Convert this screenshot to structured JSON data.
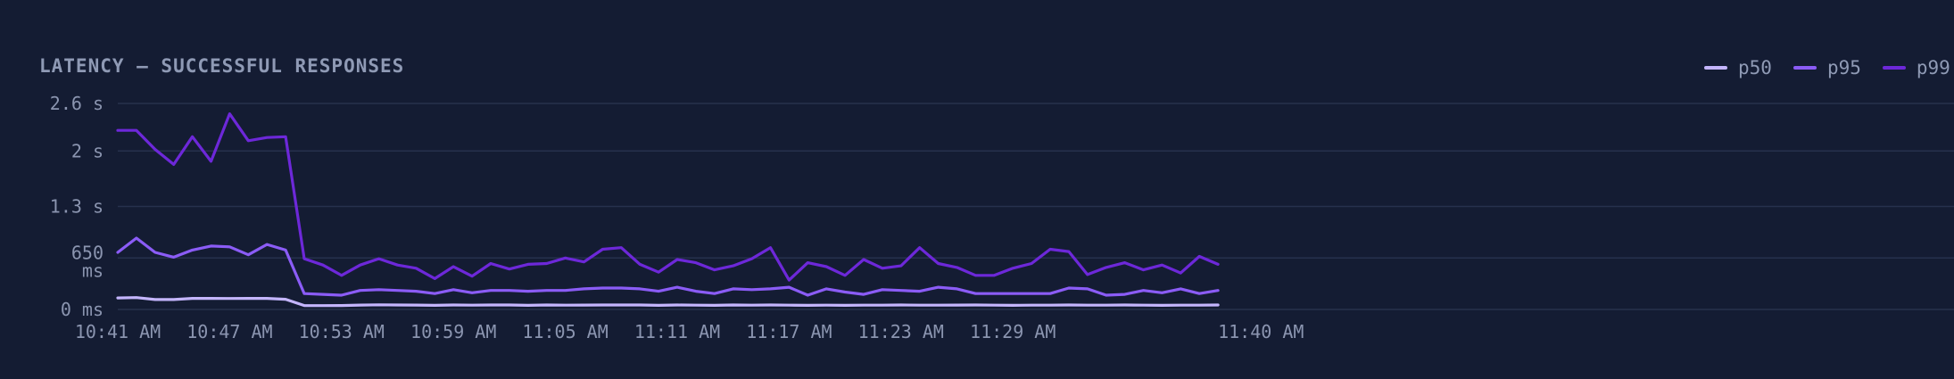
{
  "chart_data": {
    "type": "line",
    "title": "LATENCY — SUCCESSFUL RESPONSES",
    "xlabel": "",
    "ylabel": "",
    "x_tick_labels": [
      "10:41 AM",
      "10:47 AM",
      "10:53 AM",
      "10:59 AM",
      "11:05 AM",
      "11:11 AM",
      "11:17 AM",
      "11:23 AM",
      "11:29 AM",
      "11:40 AM"
    ],
    "x_tick_index": [
      0,
      6,
      12,
      18,
      24,
      30,
      36,
      42,
      48,
      59
    ],
    "y_ticks": [
      {
        "value": 0,
        "label": "0 ms"
      },
      {
        "value": 650,
        "label": "650 ms"
      },
      {
        "value": 1300,
        "label": "1.3 s"
      },
      {
        "value": 2000,
        "label": "2 s"
      },
      {
        "value": 2600,
        "label": "2.6 s"
      }
    ],
    "ylim": [
      0,
      2600
    ],
    "grid": true,
    "legend_position": "top-right",
    "colors": {
      "p50": "#c4b5fd",
      "p95": "#8b5cf6",
      "p99": "#6d28d9"
    },
    "series": [
      {
        "name": "p50",
        "color": "#c4b5fd",
        "values": [
          145,
          150,
          125,
          125,
          140,
          140,
          138,
          140,
          140,
          128,
          50,
          48,
          50,
          55,
          58,
          56,
          55,
          52,
          56,
          54,
          56,
          56,
          52,
          56,
          54,
          55,
          56,
          56,
          56,
          52,
          56,
          54,
          52,
          56,
          54,
          56,
          54,
          52,
          54,
          52,
          54,
          54,
          56,
          54,
          54,
          55,
          56,
          54,
          52,
          54,
          54,
          56,
          54,
          54,
          56,
          54,
          52,
          54,
          54,
          56
        ]
      },
      {
        "name": "p95",
        "color": "#8b5cf6",
        "values": [
          720,
          900,
          720,
          660,
          750,
          800,
          790,
          690,
          820,
          750,
          200,
          190,
          180,
          240,
          250,
          240,
          230,
          200,
          250,
          210,
          240,
          240,
          230,
          240,
          240,
          260,
          270,
          270,
          260,
          230,
          280,
          230,
          200,
          260,
          250,
          260,
          280,
          180,
          260,
          220,
          190,
          250,
          240,
          230,
          280,
          260,
          200,
          200,
          200,
          200,
          200,
          270,
          260,
          180,
          190,
          240,
          210,
          260,
          200,
          240
        ]
      },
      {
        "name": "p99",
        "color": "#6d28d9",
        "values": [
          2260,
          2260,
          2020,
          1830,
          2180,
          1870,
          2470,
          2130,
          2170,
          2180,
          640,
          560,
          430,
          560,
          640,
          560,
          520,
          390,
          540,
          420,
          580,
          510,
          570,
          580,
          650,
          600,
          760,
          780,
          570,
          470,
          630,
          590,
          500,
          550,
          640,
          780,
          370,
          590,
          540,
          430,
          630,
          520,
          550,
          780,
          580,
          530,
          430,
          430,
          520,
          580,
          760,
          730,
          440,
          530,
          590,
          500,
          560,
          460,
          670,
          570
        ]
      }
    ]
  }
}
